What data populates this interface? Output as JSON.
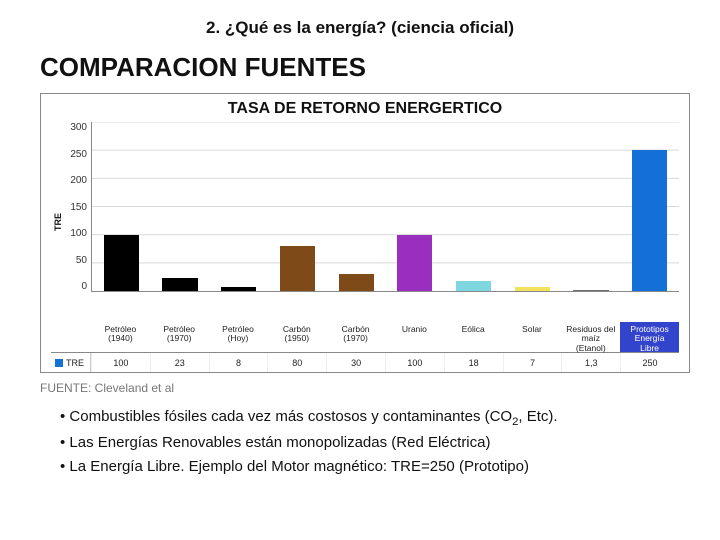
{
  "header": "2. ¿Qué es la energía? (ciencia oficial)",
  "section_title": "COMPARACION FUENTES",
  "chart": {
    "type": "bar",
    "title": "TASA DE RETORNO ENERGERTICO",
    "ylabel": "TRE",
    "ylim": [
      0,
      300
    ],
    "ytick_step": 50,
    "yticks": [
      300,
      250,
      200,
      150,
      100,
      50,
      0
    ],
    "grid_color": "#d9d9d9",
    "axis_color": "#888888",
    "background_color": "#ffffff",
    "label_fontsize": 9,
    "title_fontsize": 16,
    "categories": [
      "Petróleo\n(1940)",
      "Petróleo\n(1970)",
      "Petróleo\n(Hoy)",
      "Carbón\n(1950)",
      "Carbón\n(1970)",
      "Uranio",
      "Eólica",
      "Solar",
      "Residuos del\nmaíz\n(Etanol)",
      "Prototipos\nEnergía\nLibre"
    ],
    "values": [
      100,
      23,
      8,
      80,
      30,
      100,
      18,
      7,
      1.3,
      250
    ],
    "bar_colors": [
      "#000000",
      "#000000",
      "#000000",
      "#7d4a18",
      "#7d4a18",
      "#9a2fbf",
      "#7dd6e0",
      "#f3e25b",
      "#6e6e6e",
      "#146fd6"
    ],
    "legend_series_label": "TRE",
    "legend_swatch_color": "#146fd6",
    "highlight_last_xlabel": true,
    "highlight_bg": "#3344cc",
    "highlight_fg": "#ffffff"
  },
  "source": "FUENTE: Cleveland et al",
  "bullets": [
    "• Combustibles fósiles cada vez más costosos y contaminantes (CO₂, Etc).",
    "• Las Energías Renovables están monopolizadas (Red Eléctrica)",
    "• La Energía Libre. Ejemplo del Motor magnético: TRE=250 (Prototipo)"
  ]
}
